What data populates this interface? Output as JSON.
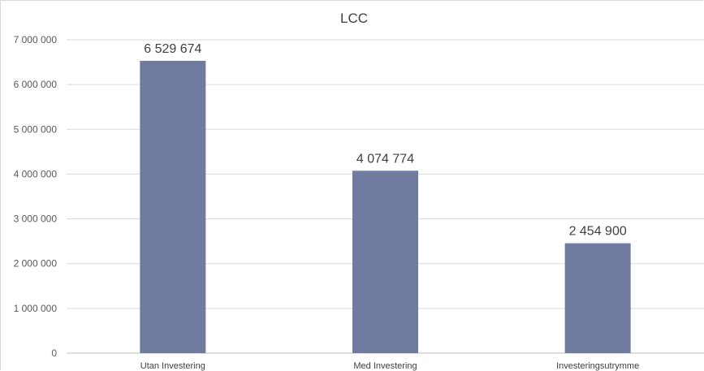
{
  "chart_data": {
    "type": "bar",
    "title": "LCC",
    "xlabel": "",
    "ylabel": "",
    "categories": [
      "Utan Investering",
      "Med Investering",
      "Investeringsutrymme"
    ],
    "values": [
      6529674,
      4074774,
      2454900
    ],
    "value_labels": [
      "6 529 674",
      "4 074 774",
      "2 454 900"
    ],
    "ylim": [
      0,
      7000000
    ],
    "yticks": [
      0,
      1000000,
      2000000,
      3000000,
      4000000,
      5000000,
      6000000,
      7000000
    ],
    "ytick_labels": [
      "0",
      "1 000 000",
      "2 000 000",
      "3 000 000",
      "4 000 000",
      "5 000 000",
      "6 000 000",
      "7 000 000"
    ],
    "grid": true,
    "legend": "none",
    "bar_color": "#717b9f"
  }
}
